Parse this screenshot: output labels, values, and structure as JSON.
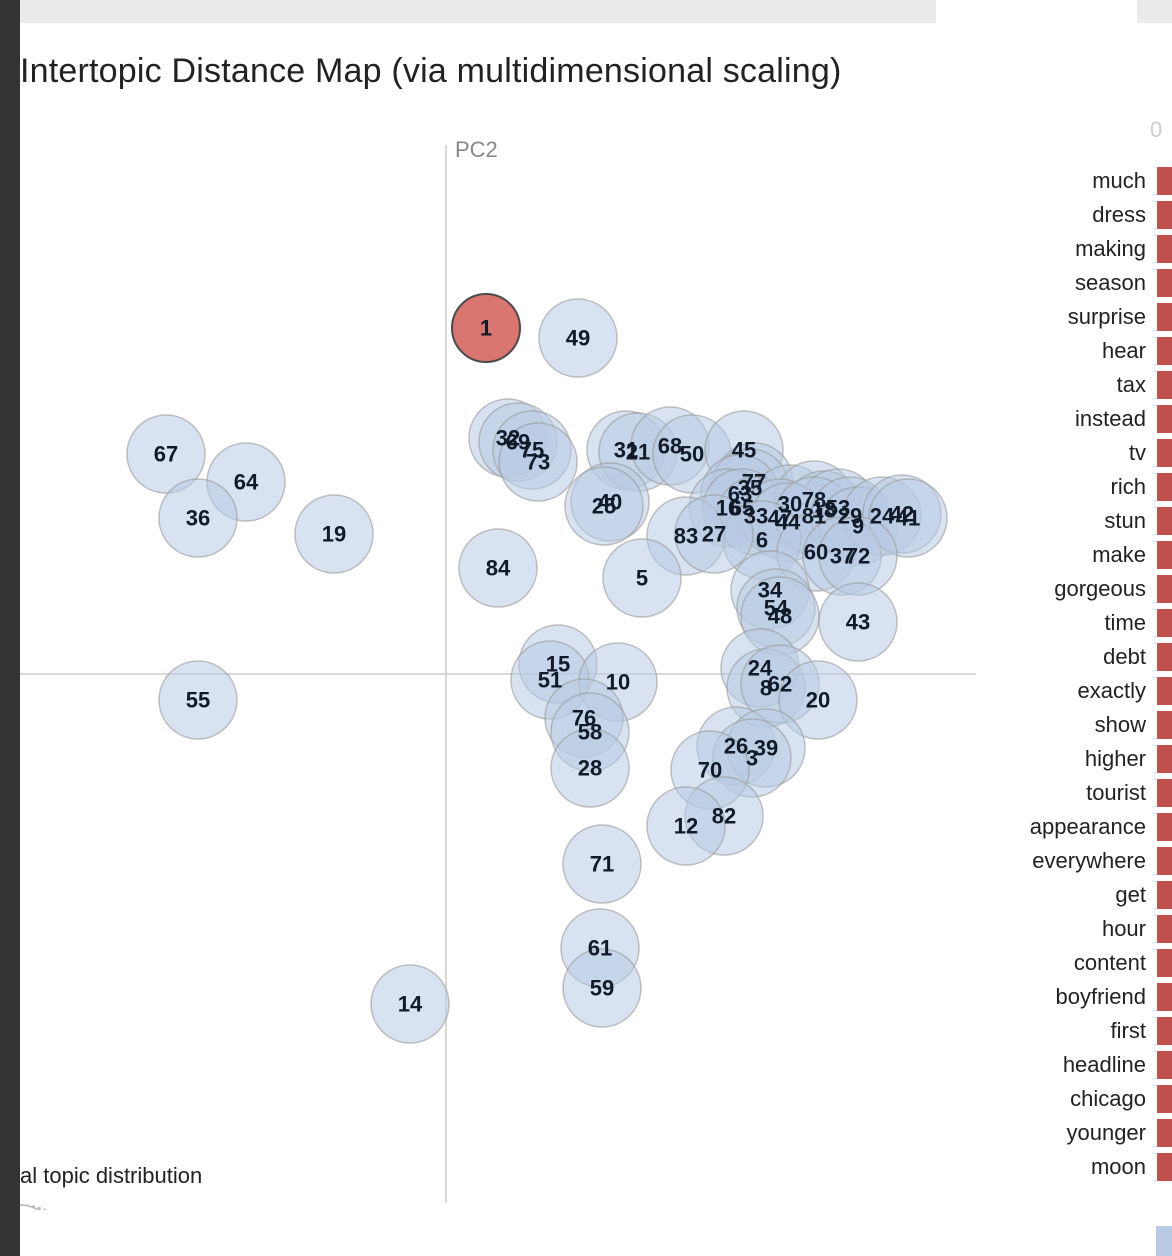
{
  "map": {
    "title": "Intertopic Distance Map (via multidimensional scaling)",
    "pc2_label": "PC2",
    "marginal_label": "al topic distribution"
  },
  "bar_panel": {
    "axis_zero": "0"
  },
  "colors": {
    "topic_fill": "#b8cbe3",
    "selected_fill": "#d9766f",
    "term_bar": "#c1514f",
    "axis": "#cccccc"
  },
  "chart_data": {
    "type": "scatter",
    "selected_topic": "1",
    "topics": [
      {
        "id": "1",
        "x": 1.0,
        "y": 8.65
      },
      {
        "id": "49",
        "x": 3.3,
        "y": 8.4
      },
      {
        "id": "67",
        "x": -7.0,
        "y": 5.5
      },
      {
        "id": "32",
        "x": 1.55,
        "y": 5.9
      },
      {
        "id": "69",
        "x": 1.8,
        "y": 5.8
      },
      {
        "id": "75",
        "x": 2.15,
        "y": 5.6
      },
      {
        "id": "73",
        "x": 2.3,
        "y": 5.3
      },
      {
        "id": "31",
        "x": 4.5,
        "y": 5.6
      },
      {
        "id": "21",
        "x": 4.8,
        "y": 5.55
      },
      {
        "id": "68",
        "x": 5.6,
        "y": 5.7
      },
      {
        "id": "50",
        "x": 6.15,
        "y": 5.5
      },
      {
        "id": "45",
        "x": 7.45,
        "y": 5.6
      },
      {
        "id": "40",
        "x": 4.1,
        "y": 4.3
      },
      {
        "id": "25",
        "x": 3.95,
        "y": 4.2
      },
      {
        "id": "77",
        "x": 7.7,
        "y": 4.8
      },
      {
        "id": "35",
        "x": 7.6,
        "y": 4.65
      },
      {
        "id": "63",
        "x": 7.35,
        "y": 4.5
      },
      {
        "id": "16",
        "x": 7.05,
        "y": 4.15
      },
      {
        "id": "65",
        "x": 7.4,
        "y": 4.15
      },
      {
        "id": "33",
        "x": 7.75,
        "y": 3.95
      },
      {
        "id": "30",
        "x": 8.6,
        "y": 4.25
      },
      {
        "id": "78",
        "x": 9.2,
        "y": 4.35
      },
      {
        "id": "18",
        "x": 9.45,
        "y": 4.1
      },
      {
        "id": "53",
        "x": 9.8,
        "y": 4.15
      },
      {
        "id": "47",
        "x": 8.35,
        "y": 3.9
      },
      {
        "id": "44",
        "x": 8.55,
        "y": 3.8
      },
      {
        "id": "81",
        "x": 9.2,
        "y": 3.95
      },
      {
        "id": "6",
        "x": 7.9,
        "y": 3.35
      },
      {
        "id": "29",
        "x": 10.1,
        "y": 3.95
      },
      {
        "id": "9",
        "x": 10.3,
        "y": 3.7
      },
      {
        "id": "24",
        "x": 10.9,
        "y": 3.95
      },
      {
        "id": "42",
        "x": 11.4,
        "y": 4.0
      },
      {
        "id": "41",
        "x": 11.55,
        "y": 3.9
      },
      {
        "id": "60",
        "x": 9.25,
        "y": 3.05
      },
      {
        "id": "37",
        "x": 9.9,
        "y": 2.95
      },
      {
        "id": "72",
        "x": 10.3,
        "y": 2.95
      },
      {
        "id": "83",
        "x": 6.0,
        "y": 3.45
      },
      {
        "id": "27",
        "x": 6.7,
        "y": 3.5
      },
      {
        "id": "64",
        "x": -5.0,
        "y": 4.8
      },
      {
        "id": "36",
        "x": -6.2,
        "y": 3.9
      },
      {
        "id": "19",
        "x": -2.8,
        "y": 3.5
      },
      {
        "id": "84",
        "x": 1.3,
        "y": 2.65
      },
      {
        "id": "5",
        "x": 4.9,
        "y": 2.4
      },
      {
        "id": "34",
        "x": 8.1,
        "y": 2.1
      },
      {
        "id": "54",
        "x": 8.25,
        "y": 1.65
      },
      {
        "id": "48",
        "x": 8.35,
        "y": 1.45
      },
      {
        "id": "43",
        "x": 10.3,
        "y": 1.3
      },
      {
        "id": "15",
        "x": 2.8,
        "y": 0.25
      },
      {
        "id": "51",
        "x": 2.6,
        "y": -0.15
      },
      {
        "id": "10",
        "x": 4.3,
        "y": -0.2
      },
      {
        "id": "24b",
        "label": "24",
        "x": 7.85,
        "y": 0.15
      },
      {
        "id": "8",
        "x": 8.0,
        "y": -0.35
      },
      {
        "id": "62",
        "x": 8.35,
        "y": -0.25
      },
      {
        "id": "20",
        "x": 9.3,
        "y": -0.65
      },
      {
        "id": "55",
        "x": -6.2,
        "y": -0.65
      },
      {
        "id": "76",
        "x": 3.45,
        "y": -1.1
      },
      {
        "id": "58",
        "x": 3.6,
        "y": -1.45
      },
      {
        "id": "26",
        "x": 7.25,
        "y": -1.8
      },
      {
        "id": "39",
        "x": 8.0,
        "y": -1.85
      },
      {
        "id": "3",
        "x": 7.65,
        "y": -2.1
      },
      {
        "id": "28",
        "x": 3.6,
        "y": -2.35
      },
      {
        "id": "70",
        "x": 6.6,
        "y": -2.4
      },
      {
        "id": "82",
        "x": 6.95,
        "y": -3.55
      },
      {
        "id": "12",
        "x": 6.0,
        "y": -3.8
      },
      {
        "id": "71",
        "x": 3.9,
        "y": -4.75
      },
      {
        "id": "61",
        "x": 3.85,
        "y": -6.85
      },
      {
        "id": "59",
        "x": 3.9,
        "y": -7.85
      },
      {
        "id": "14",
        "x": -0.9,
        "y": -8.25
      }
    ],
    "terms": [
      "much",
      "dress",
      "making",
      "season",
      "surprise",
      "hear",
      "tax",
      "instead",
      "tv",
      "rich",
      "stun",
      "make",
      "gorgeous",
      "time",
      "debt",
      "exactly",
      "show",
      "higher",
      "tourist",
      "appearance",
      "everywhere",
      "get",
      "hour",
      "content",
      "boyfriend",
      "first",
      "headline",
      "chicago",
      "younger",
      "moon"
    ]
  }
}
